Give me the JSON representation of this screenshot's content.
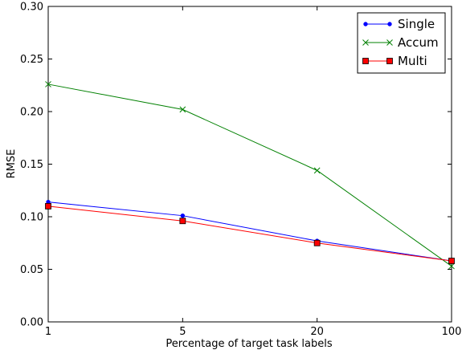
{
  "chart_data": {
    "type": "line",
    "xlabel": "Percentage of target task labels",
    "ylabel": "RMSE",
    "x": [
      1,
      5,
      20,
      100
    ],
    "x_tick_labels": [
      "1",
      "5",
      "20",
      "100"
    ],
    "y_tick_labels": [
      "0.00",
      "0.05",
      "0.10",
      "0.15",
      "0.20",
      "0.25",
      "0.30"
    ],
    "ylim": [
      0,
      0.3
    ],
    "y_ticks": [
      0,
      0.05,
      0.1,
      0.15,
      0.2,
      0.25,
      0.3
    ],
    "x_scale": "categorical-evenly-spaced",
    "grid": false,
    "legend_position": "top-right",
    "series": [
      {
        "name": "Single",
        "values": [
          0.114,
          0.101,
          0.077,
          0.058
        ],
        "color": "#0000ff",
        "marker": "dot"
      },
      {
        "name": "Accum",
        "values": [
          0.226,
          0.202,
          0.144,
          0.053
        ],
        "color": "#008000",
        "marker": "x"
      },
      {
        "name": "Multi",
        "values": [
          0.11,
          0.096,
          0.075,
          0.058
        ],
        "color": "#ff0000",
        "marker": "square"
      }
    ]
  }
}
